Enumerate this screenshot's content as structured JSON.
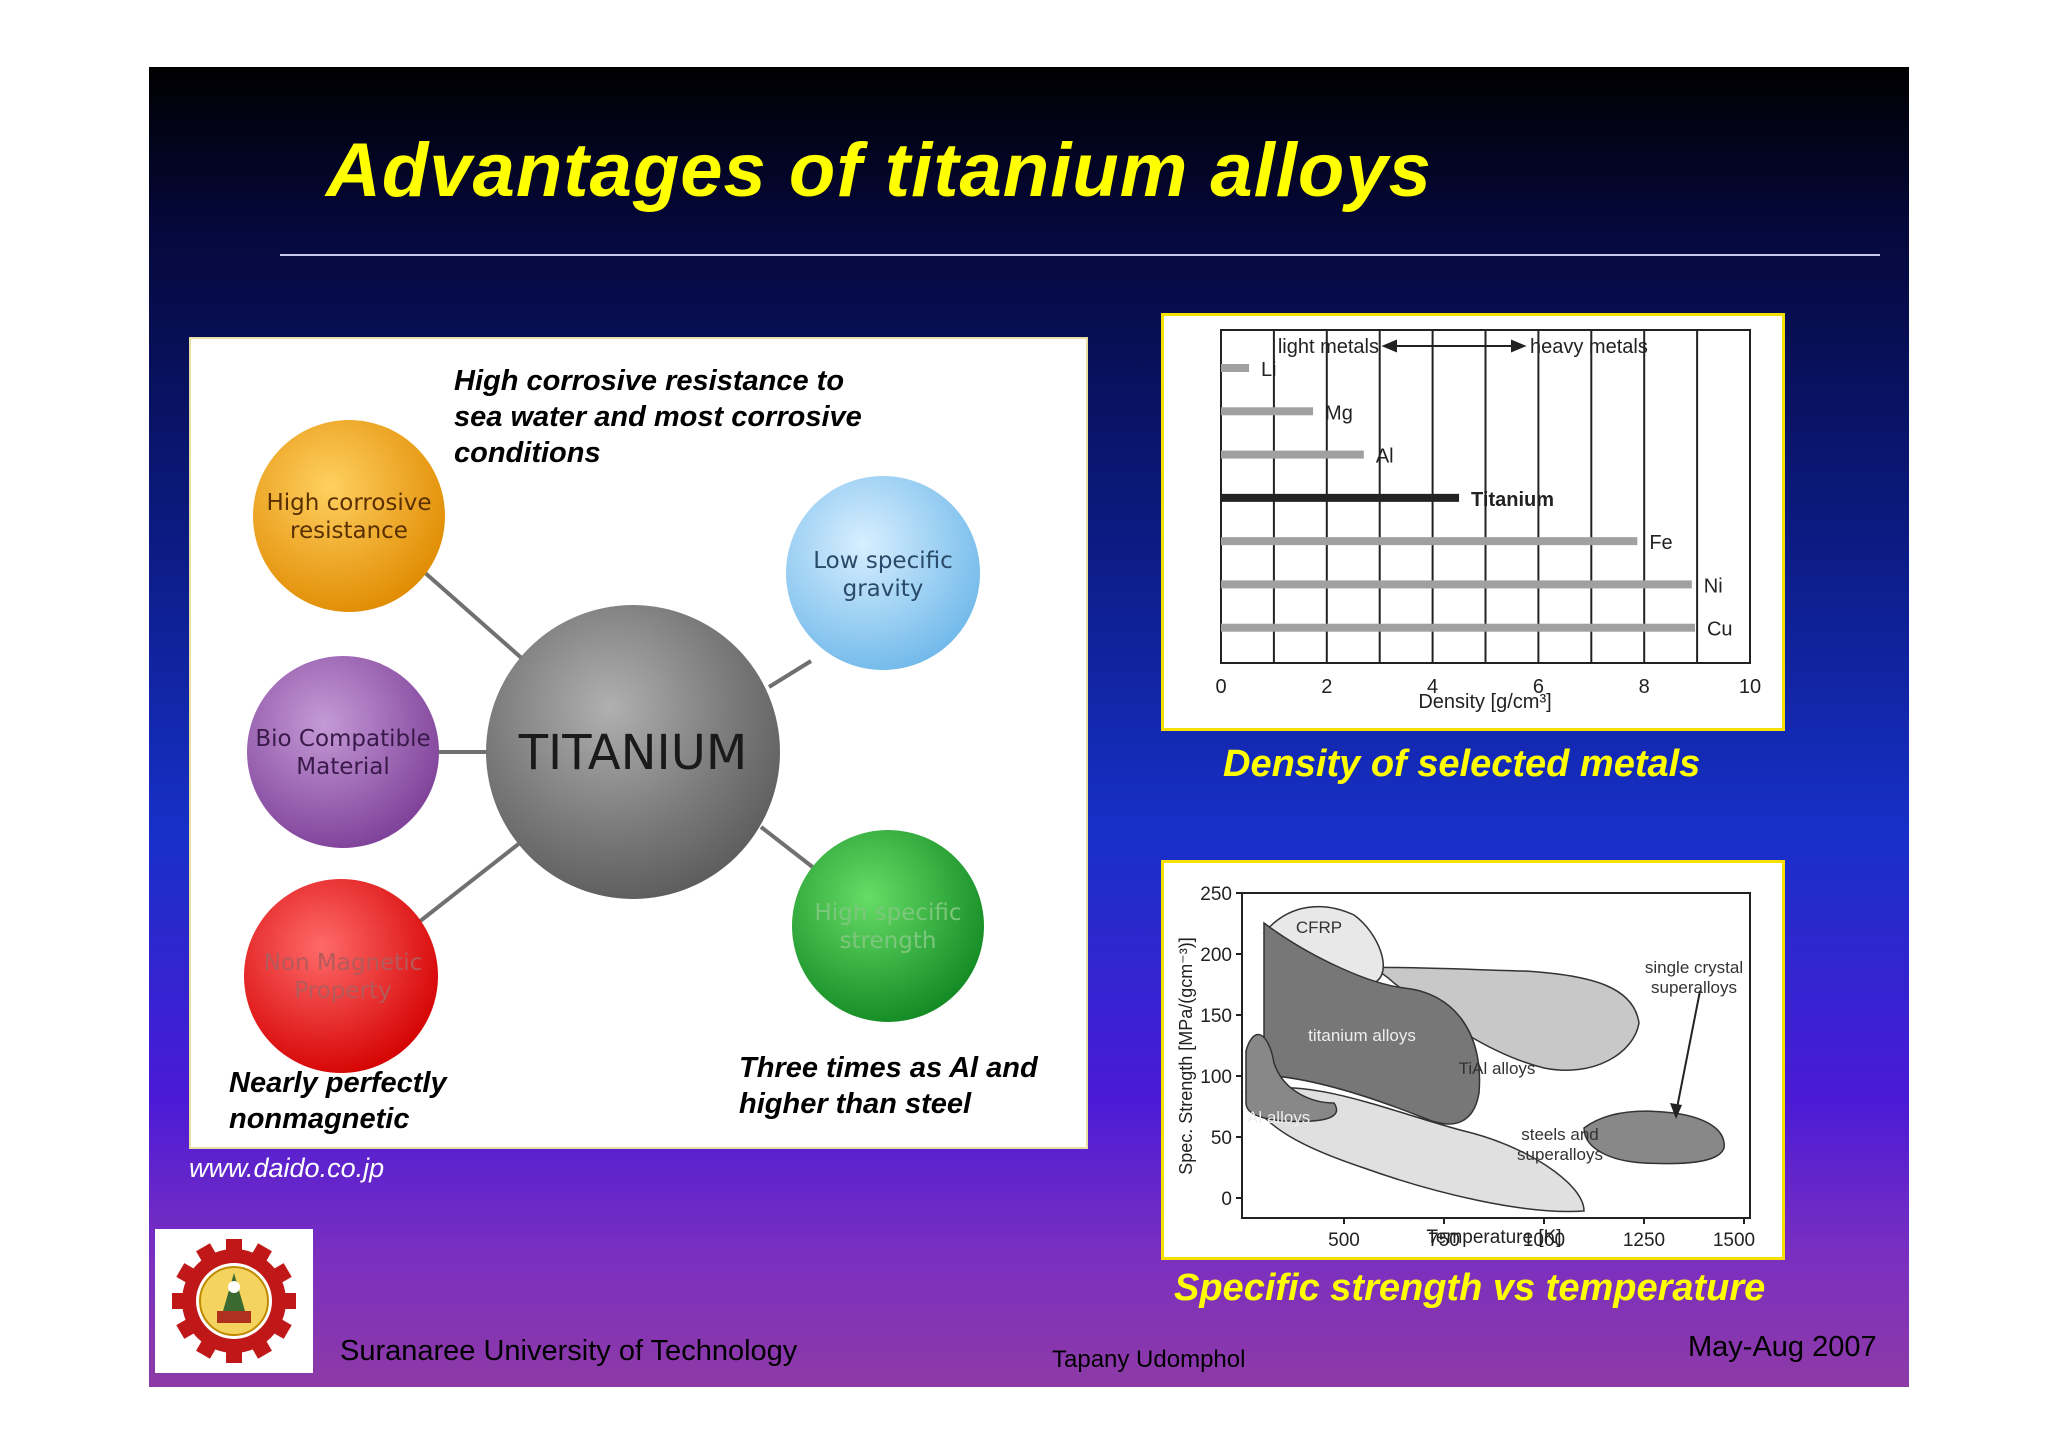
{
  "slide": {
    "title": "Advantages of titanium alloys",
    "source": "www.daido.co.jp",
    "footer_left": "Suranaree University of Technology",
    "footer_center": "Tapany  Udomphol",
    "footer_right": "May-Aug   2007"
  },
  "diagram": {
    "center_label": "TITANIUM",
    "nodes": [
      {
        "line1": "High corrosive",
        "line2": "resistance",
        "color": "#f0a010"
      },
      {
        "line1": "Bio Compatible",
        "line2": "Material",
        "color": "#9b5fb0"
      },
      {
        "line1": "Non Magnetic",
        "line2": "Property",
        "color": "#ee1a1a"
      },
      {
        "line1": "Low specific",
        "line2": "gravity",
        "color": "#8ec8f0"
      },
      {
        "line1": "High specific",
        "line2": "strength",
        "color": "#22aa33"
      }
    ],
    "notes": {
      "corrosion": [
        "High corrosive resistance to",
        "sea water and most corrosive",
        "conditions"
      ],
      "magnetic": [
        "Nearly perfectly",
        "nonmagnetic"
      ],
      "strength": [
        "Three times as Al and",
        "higher than steel"
      ]
    }
  },
  "density_chart": {
    "caption": "Density of selected metals",
    "light_label": "light metals",
    "heavy_label": "heavy metals",
    "xlabel": "Density [g/cm³]",
    "ticks": [
      "0",
      "2",
      "4",
      "6",
      "8",
      "10"
    ]
  },
  "strength_chart": {
    "caption": "Specific strength vs temperature",
    "xlabel": "Temperature [K]",
    "ylabel": "Spec. Strength [MPa/(gcm⁻³)]",
    "xticks": [
      "500",
      "750",
      "1000",
      "1250",
      "1500"
    ],
    "yticks": [
      "250",
      "200",
      "150",
      "100",
      "50",
      "0"
    ],
    "regions": {
      "cfrp": "CFRP",
      "ti": "titanium alloys",
      "tial": "TiAl alloys",
      "al": "Al alloys",
      "steel_l1": "steels and",
      "steel_l2": "superalloys",
      "sc_l1": "single crystal",
      "sc_l2": "superalloys"
    }
  },
  "chart_data": {
    "type": "bar",
    "title": "Density of selected metals",
    "xlabel": "Density [g/cm³]",
    "xlim": [
      0,
      10
    ],
    "categories": [
      "Li",
      "Mg",
      "Al",
      "Titanium",
      "Fe",
      "Ni",
      "Cu"
    ],
    "values": [
      0.53,
      1.74,
      2.7,
      4.5,
      7.87,
      8.9,
      8.96
    ],
    "orientation": "horizontal",
    "annotation": "light metals / heavy metals boundary at 5"
  }
}
